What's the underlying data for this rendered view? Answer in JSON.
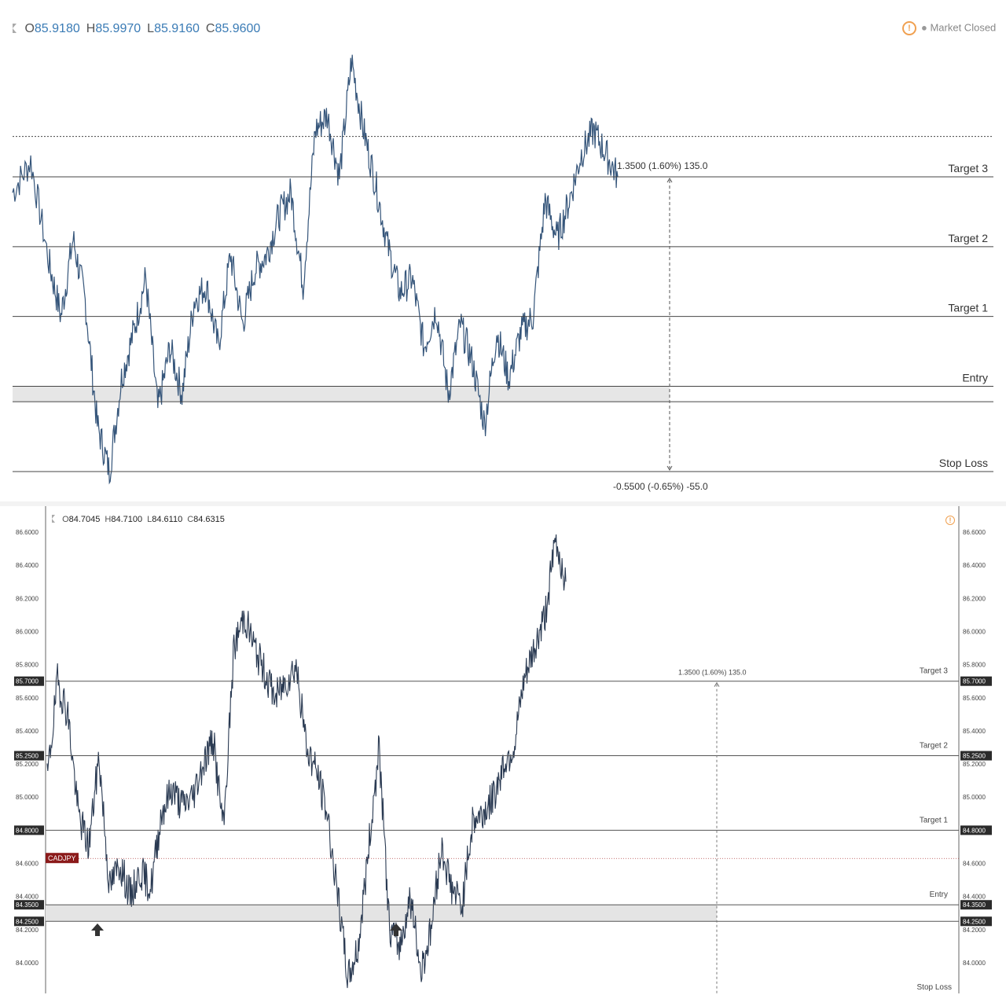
{
  "chart_data": [
    {
      "type": "line",
      "header": {
        "ohlc": [
          {
            "label": "O",
            "value": "85.9180"
          },
          {
            "label": "H",
            "value": "85.9970"
          },
          {
            "label": "L",
            "value": "85.9160"
          },
          {
            "label": "C",
            "value": "85.9600"
          }
        ],
        "status": "Market Closed"
      },
      "levels": [
        {
          "name": "Target 3",
          "price": 85.7
        },
        {
          "name": "Target 2",
          "price": 85.25
        },
        {
          "name": "Target 1",
          "price": 84.8
        },
        {
          "name": "Entry",
          "price": 84.35
        },
        {
          "name": "Stop Loss",
          "price": 83.8
        }
      ],
      "entry_zone": [
        84.25,
        84.35
      ],
      "current_price": 85.96,
      "measure": {
        "profit_label": "1.3500 (1.60%) 135.0",
        "loss_label": "-0.5500 (-0.65%) -55.0"
      },
      "price_path": [
        [
          0,
          85.6
        ],
        [
          3,
          85.8
        ],
        [
          6,
          85.15
        ],
        [
          8,
          84.8
        ],
        [
          10,
          85.3
        ],
        [
          12,
          84.9
        ],
        [
          14,
          84.1
        ],
        [
          16,
          83.8
        ],
        [
          18,
          84.4
        ],
        [
          20,
          84.7
        ],
        [
          22,
          85.05
        ],
        [
          24,
          84.2
        ],
        [
          26,
          84.6
        ],
        [
          28,
          84.3
        ],
        [
          30,
          84.9
        ],
        [
          32,
          85.0
        ],
        [
          34,
          84.6
        ],
        [
          36,
          85.2
        ],
        [
          38,
          84.75
        ],
        [
          40,
          85.1
        ],
        [
          42,
          85.2
        ],
        [
          44,
          85.45
        ],
        [
          46,
          85.6
        ],
        [
          48,
          85.0
        ],
        [
          50,
          86.0
        ],
        [
          52,
          86.1
        ],
        [
          54,
          85.7
        ],
        [
          56,
          86.45
        ],
        [
          58,
          86.0
        ],
        [
          60,
          85.65
        ],
        [
          62,
          85.25
        ],
        [
          64,
          84.95
        ],
        [
          66,
          85.05
        ],
        [
          68,
          84.6
        ],
        [
          70,
          84.85
        ],
        [
          72,
          84.3
        ],
        [
          74,
          84.75
        ],
        [
          76,
          84.5
        ],
        [
          78,
          84.1
        ],
        [
          80,
          84.7
        ],
        [
          82,
          84.4
        ],
        [
          84,
          84.7
        ],
        [
          86,
          84.8
        ],
        [
          88,
          85.55
        ],
        [
          90,
          85.3
        ],
        [
          92,
          85.55
        ],
        [
          94,
          85.85
        ],
        [
          96,
          86.0
        ],
        [
          98,
          85.85
        ],
        [
          100,
          85.7
        ]
      ]
    },
    {
      "type": "line",
      "header": {
        "ohlc": [
          {
            "label": "O",
            "value": "84.7045"
          },
          {
            "label": "H",
            "value": "84.7100"
          },
          {
            "label": "L",
            "value": "84.6110"
          },
          {
            "label": "C",
            "value": "84.6315"
          }
        ]
      },
      "symbol": "CADJPY",
      "y_ticks": [
        "86.6000",
        "86.4000",
        "86.2000",
        "86.0000",
        "85.8000",
        "85.6000",
        "85.4000",
        "85.2000",
        "85.0000",
        "84.6000",
        "84.4000",
        "84.2000",
        "84.0000"
      ],
      "highlighted_prices": [
        "85.7000",
        "85.2500",
        "84.8000",
        "84.3500",
        "84.2500"
      ],
      "ylim": [
        83.85,
        86.65
      ],
      "levels": [
        {
          "name": "Target 3",
          "price": 85.7
        },
        {
          "name": "Target 2",
          "price": 85.25
        },
        {
          "name": "Target 1",
          "price": 84.8
        },
        {
          "name": "Entry",
          "price": 84.35
        },
        {
          "name": "Stop Loss",
          "price": 83.8
        }
      ],
      "entry_zone": [
        84.25,
        84.35
      ],
      "current_price": 84.63,
      "measure": {
        "profit_label": "1.3500 (1.60%) 135.0"
      },
      "price_path": [
        [
          0,
          85.1
        ],
        [
          2,
          85.7
        ],
        [
          4,
          85.5
        ],
        [
          6,
          84.9
        ],
        [
          8,
          84.7
        ],
        [
          10,
          85.25
        ],
        [
          12,
          84.45
        ],
        [
          14,
          84.6
        ],
        [
          16,
          84.4
        ],
        [
          18,
          84.55
        ],
        [
          20,
          84.45
        ],
        [
          22,
          84.9
        ],
        [
          24,
          85.05
        ],
        [
          26,
          84.95
        ],
        [
          28,
          85.0
        ],
        [
          30,
          85.2
        ],
        [
          32,
          85.35
        ],
        [
          34,
          84.8
        ],
        [
          36,
          85.9
        ],
        [
          38,
          86.1
        ],
        [
          40,
          85.9
        ],
        [
          42,
          85.75
        ],
        [
          44,
          85.6
        ],
        [
          46,
          85.7
        ],
        [
          48,
          85.8
        ],
        [
          50,
          85.3
        ],
        [
          52,
          85.15
        ],
        [
          54,
          84.9
        ],
        [
          56,
          84.4
        ],
        [
          58,
          83.9
        ],
        [
          60,
          84.1
        ],
        [
          62,
          84.7
        ],
        [
          64,
          85.3
        ],
        [
          66,
          84.2
        ],
        [
          68,
          84.1
        ],
        [
          70,
          84.4
        ],
        [
          72,
          83.95
        ],
        [
          74,
          84.2
        ],
        [
          76,
          84.7
        ],
        [
          78,
          84.45
        ],
        [
          80,
          84.35
        ],
        [
          82,
          84.85
        ],
        [
          84,
          84.9
        ],
        [
          86,
          85.0
        ],
        [
          88,
          85.2
        ],
        [
          90,
          85.3
        ],
        [
          92,
          85.7
        ],
        [
          94,
          85.9
        ],
        [
          96,
          86.1
        ],
        [
          98,
          86.55
        ],
        [
          100,
          86.3
        ]
      ]
    }
  ]
}
